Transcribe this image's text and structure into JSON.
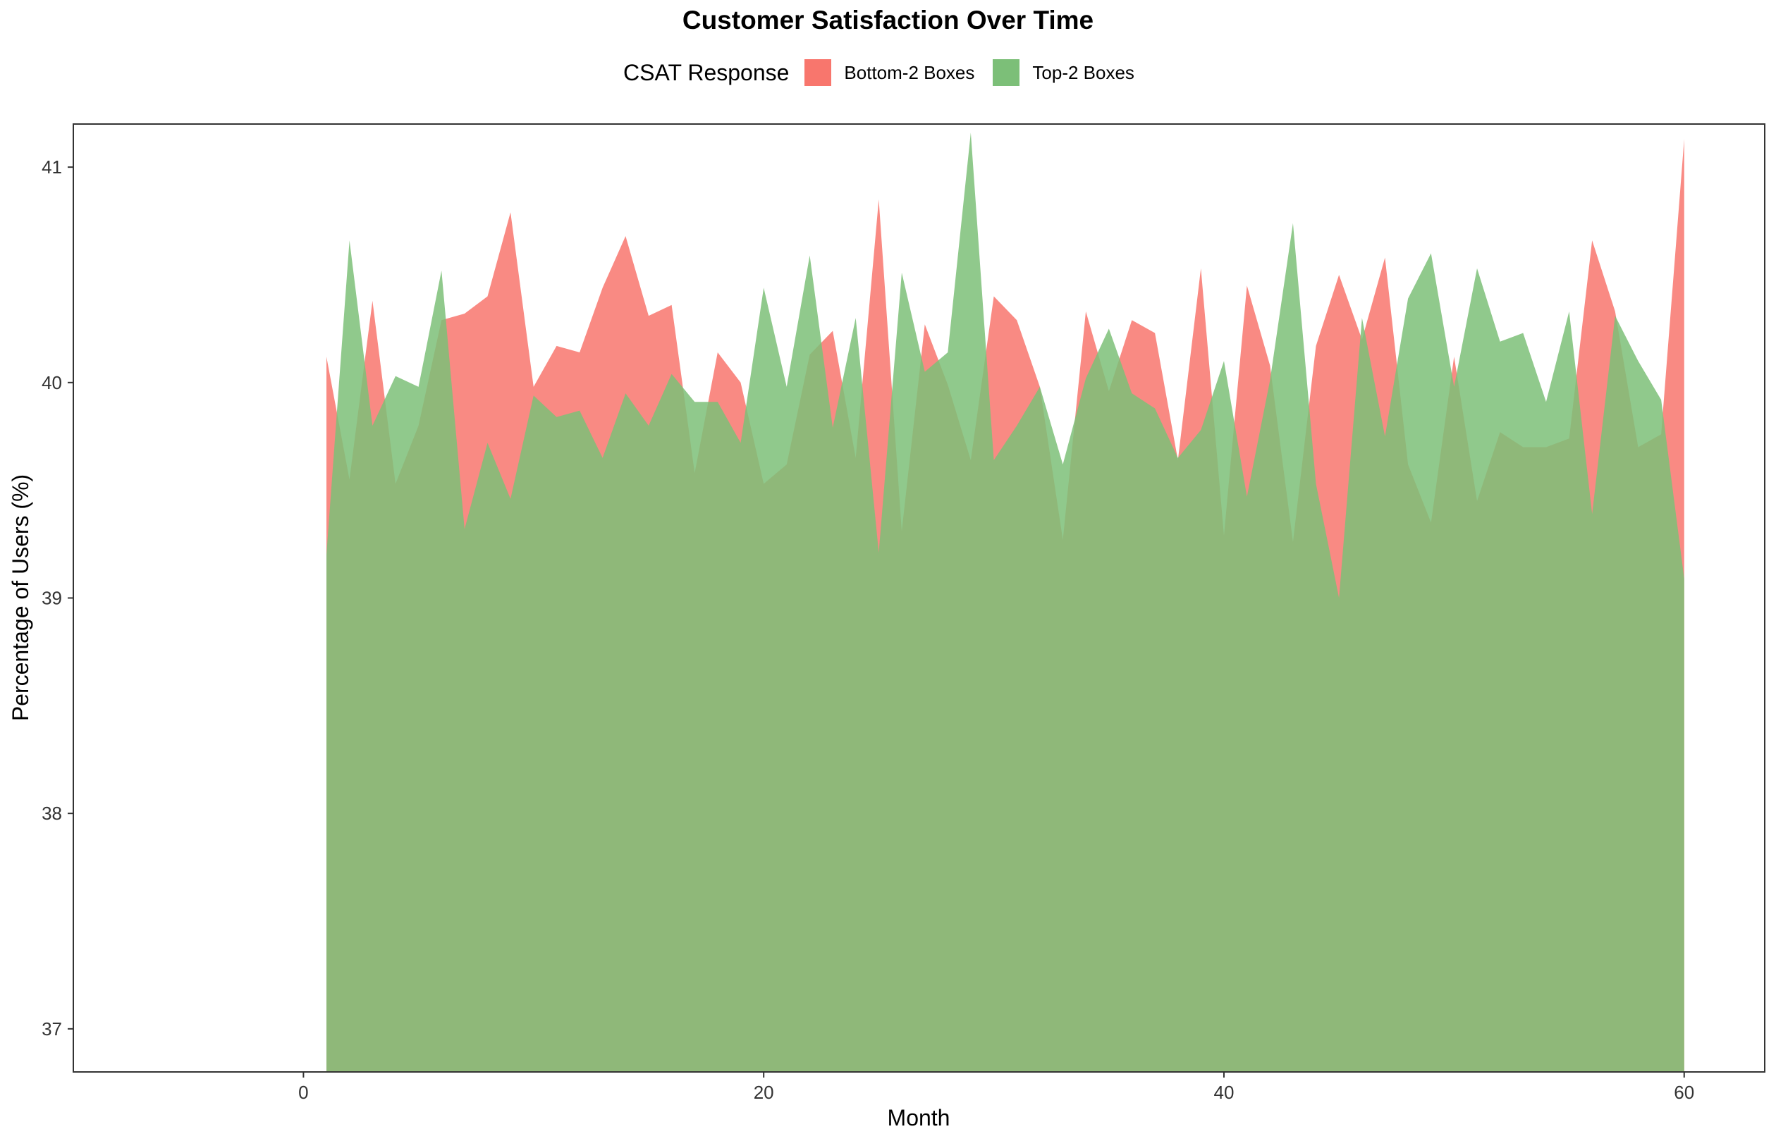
{
  "chart_data": {
    "type": "area",
    "title": "Customer Satisfaction Over Time",
    "xlabel": "Month",
    "ylabel": "Percentage of Users (%)",
    "legend_title": "CSAT Response",
    "legend_position": "top",
    "grid": false,
    "xlim": [
      -10,
      63.5
    ],
    "ylim": [
      36.8,
      41.2
    ],
    "xticks": [
      0,
      20,
      40,
      60
    ],
    "yticks": [
      37,
      38,
      39,
      40,
      41
    ],
    "x": [
      1,
      2,
      3,
      4,
      5,
      6,
      7,
      8,
      9,
      10,
      11,
      12,
      13,
      14,
      15,
      16,
      17,
      18,
      19,
      20,
      21,
      22,
      23,
      24,
      25,
      26,
      27,
      28,
      29,
      30,
      31,
      32,
      33,
      34,
      35,
      36,
      37,
      38,
      39,
      40,
      41,
      42,
      43,
      44,
      45,
      46,
      47,
      48,
      49,
      50,
      51,
      52,
      53,
      54,
      55,
      56,
      57,
      58,
      59,
      60
    ],
    "series": [
      {
        "name": "Bottom-2 Boxes",
        "color": "#F8766D",
        "values": [
          40.12,
          39.55,
          40.38,
          39.53,
          39.8,
          40.29,
          40.32,
          40.4,
          40.79,
          39.98,
          40.17,
          40.14,
          40.44,
          40.68,
          40.31,
          40.36,
          39.58,
          40.14,
          40.0,
          39.53,
          39.62,
          40.13,
          40.24,
          39.65,
          40.85,
          39.31,
          40.27,
          39.99,
          39.64,
          40.4,
          40.29,
          39.98,
          39.27,
          40.33,
          39.96,
          40.29,
          40.23,
          39.64,
          40.53,
          39.29,
          40.45,
          40.08,
          39.26,
          40.17,
          40.5,
          40.2,
          40.58,
          39.62,
          39.35,
          40.12,
          39.45,
          39.77,
          39.7,
          39.7,
          39.74,
          40.66,
          40.33,
          39.7,
          39.76,
          41.13
        ]
      },
      {
        "name": "Top-2 Boxes",
        "color": "#7CBF78",
        "values": [
          39.2,
          40.66,
          39.8,
          40.03,
          39.98,
          40.52,
          39.32,
          39.72,
          39.46,
          39.94,
          39.84,
          39.87,
          39.65,
          39.95,
          39.8,
          40.04,
          39.91,
          39.91,
          39.72,
          40.44,
          39.98,
          40.59,
          39.79,
          40.3,
          39.21,
          40.51,
          40.05,
          40.14,
          41.16,
          39.64,
          39.8,
          39.98,
          39.62,
          40.02,
          40.25,
          39.95,
          39.88,
          39.65,
          39.78,
          40.1,
          39.47,
          40.01,
          40.74,
          39.53,
          39.0,
          40.3,
          39.75,
          40.39,
          40.6,
          39.98,
          40.53,
          40.19,
          40.23,
          39.91,
          40.33,
          39.39,
          40.31,
          40.1,
          39.92,
          39.09
        ]
      }
    ]
  }
}
